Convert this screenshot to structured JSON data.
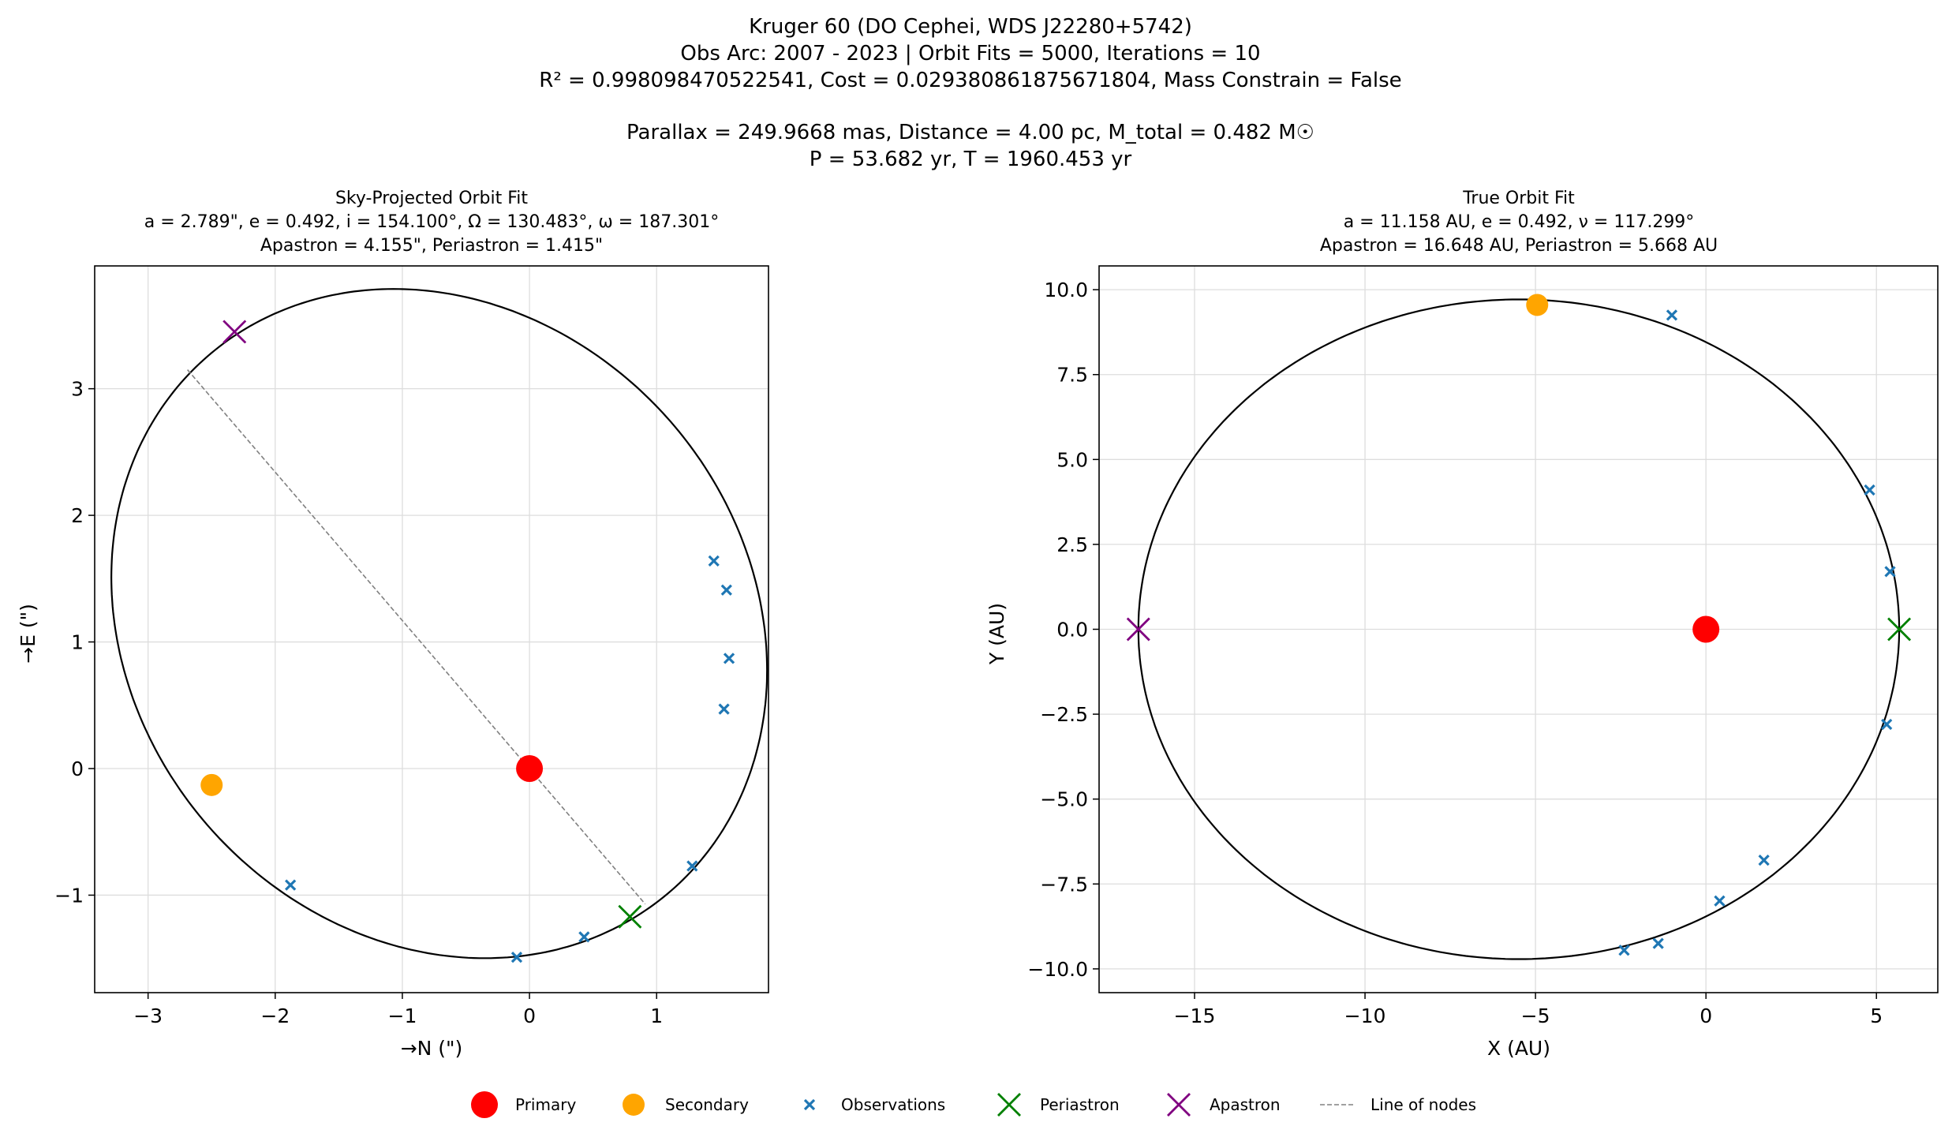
{
  "figure_title_lines": [
    "Kruger 60 (DO Cephei, WDS J22280+5742)",
    "Obs Arc: 2007 - 2023 | Orbit Fits = 5000, Iterations = 10",
    "R² = 0.998098470522541, Cost = 0.029380861875671804, Mass Constrain = False",
    "Parallax = 249.9668 mas, Distance = 4.00 pc, M_total = 0.482 M☉",
    "P = 53.682 yr, T = 1960.453 yr"
  ],
  "colors": {
    "primary": "#ff0000",
    "secondary": "#ffa500",
    "observations": "#1f77b4",
    "periastron": "#008000",
    "apastron": "#800080",
    "orbit": "#000000",
    "line_of_nodes": "#808080",
    "grid": "#dddddd"
  },
  "legend": [
    {
      "label": "Primary",
      "marker": "circle",
      "color": "#ff0000"
    },
    {
      "label": "Secondary",
      "marker": "circle",
      "color": "#ffa500"
    },
    {
      "label": "Observations",
      "marker": "small-x",
      "color": "#1f77b4"
    },
    {
      "label": "Periastron",
      "marker": "large-x",
      "color": "#008000"
    },
    {
      "label": "Apastron",
      "marker": "large-x",
      "color": "#800080"
    },
    {
      "label": "Line of nodes",
      "marker": "dashed-line",
      "color": "#808080"
    }
  ],
  "chart_data": [
    {
      "type": "scatter",
      "title_lines": [
        "Sky-Projected Orbit Fit",
        "a = 2.789\", e = 0.492, i = 154.100°, Ω = 130.483°, ω = 187.301°",
        "Apastron = 4.155\", Periastron = 1.415\""
      ],
      "xlabel": "→N (\")",
      "ylabel": "→E (\")",
      "xlim": [
        -3.42,
        1.88
      ],
      "ylim": [
        -1.77,
        3.97
      ],
      "xticks": [
        -3,
        -2,
        -1,
        0,
        1
      ],
      "yticks": [
        -1,
        0,
        1,
        2,
        3
      ],
      "grid": true,
      "orbit": {
        "center": [
          -0.71,
          1.145
        ],
        "semi_axis_1": 2.789,
        "semi_axis_2": 2.42,
        "rotation_deg": -50
      },
      "primary": [
        0,
        0
      ],
      "secondary": [
        -2.5,
        -0.13
      ],
      "periastron": [
        0.79,
        -1.17
      ],
      "apastron": [
        -2.32,
        3.45
      ],
      "line_of_nodes": [
        [
          -2.69,
          3.15
        ],
        [
          0.91,
          -1.07
        ]
      ],
      "observations": [
        [
          -1.88,
          -0.92
        ],
        [
          -0.1,
          -1.49
        ],
        [
          0.43,
          -1.33
        ],
        [
          1.28,
          -0.77
        ],
        [
          1.53,
          0.47
        ],
        [
          1.57,
          0.87
        ],
        [
          1.55,
          1.41
        ],
        [
          1.45,
          1.64
        ]
      ]
    },
    {
      "type": "scatter",
      "title_lines": [
        "True Orbit Fit",
        "a = 11.158 AU, e = 0.492, ν = 117.299°",
        "Apastron = 16.648 AU, Periastron = 5.668 AU"
      ],
      "xlabel": "X (AU)",
      "ylabel": "Y (AU)",
      "xlim": [
        -17.8,
        6.8
      ],
      "ylim": [
        -10.7,
        10.7
      ],
      "xticks": [
        -15,
        -10,
        -5,
        0,
        5
      ],
      "yticks": [
        -10.0,
        -7.5,
        -5.0,
        -2.5,
        0.0,
        2.5,
        5.0,
        7.5,
        10.0
      ],
      "ytick_labels": [
        "−10.0",
        "−7.5",
        "−5.0",
        "−2.5",
        "0.0",
        "2.5",
        "5.0",
        "7.5",
        "10.0"
      ],
      "grid": true,
      "orbit": {
        "center": [
          -5.49,
          0
        ],
        "semi_axis_1": 11.158,
        "semi_axis_2": 9.713,
        "rotation_deg": 0
      },
      "primary": [
        0,
        0
      ],
      "secondary": [
        -4.95,
        9.55
      ],
      "periastron": [
        5.668,
        0
      ],
      "apastron": [
        -16.648,
        0
      ],
      "observations": [
        [
          -1.0,
          9.25
        ],
        [
          4.8,
          4.1
        ],
        [
          5.4,
          1.7
        ],
        [
          5.3,
          -2.8
        ],
        [
          1.7,
          -6.8
        ],
        [
          0.4,
          -8.0
        ],
        [
          -1.4,
          -9.25
        ],
        [
          -2.4,
          -9.45
        ]
      ]
    }
  ]
}
